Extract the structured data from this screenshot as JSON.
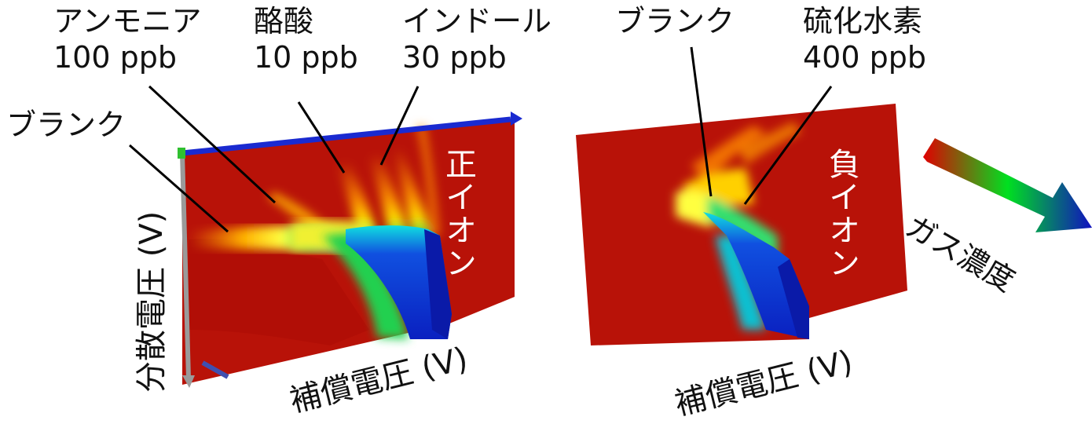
{
  "left_panel": {
    "labels": {
      "ammonia": "アンモニア",
      "ammonia_conc": "100 ppb",
      "butyric": "酪酸",
      "butyric_conc": "10 ppb",
      "indole": "インドール",
      "indole_conc": "30 ppb",
      "blank": "ブランク"
    },
    "ion_label": "正イオン",
    "y_axis": "分散電圧 (V)",
    "x_axis": "補償電圧 (V)"
  },
  "right_panel": {
    "labels": {
      "blank": "ブランク",
      "h2s": "硫化水素",
      "h2s_conc": "400 ppb"
    },
    "ion_label": "負イオン",
    "x_axis": "補償電圧 (V)"
  },
  "legend": {
    "label": "ガス濃度",
    "colors": [
      "#e00000",
      "#00e020",
      "#1010c0"
    ]
  }
}
